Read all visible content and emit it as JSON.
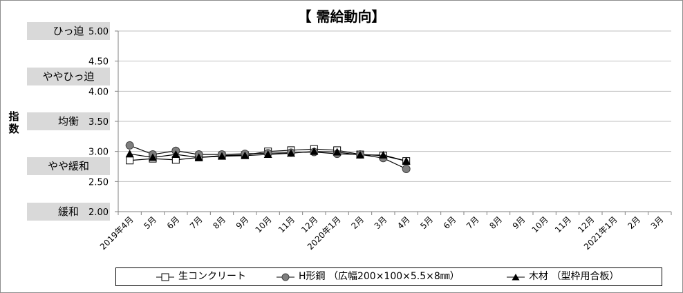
{
  "chart_data": {
    "type": "line",
    "title": "【 需給動向】",
    "ylabel": "指数",
    "ylim": [
      2.0,
      5.0
    ],
    "yticks": [
      "2.00",
      "2.50",
      "3.00",
      "3.50",
      "4.00",
      "4.50",
      "5.00"
    ],
    "category_labels": [
      {
        "label": "ひっ迫",
        "value": 5.0
      },
      {
        "label": "ややひっ迫",
        "value": 4.25
      },
      {
        "label": "均衡",
        "value": 3.5
      },
      {
        "label": "やや緩和",
        "value": 2.75
      },
      {
        "label": "緩和",
        "value": 2.0
      }
    ],
    "categories": [
      "2019年4月",
      "5月",
      "6月",
      "7月",
      "8月",
      "9月",
      "10月",
      "11月",
      "12月",
      "2020年1月",
      "2月",
      "3月",
      "4月",
      "5月",
      "6月",
      "7月",
      "8月",
      "9月",
      "10月",
      "11月",
      "12月",
      "2021年1月",
      "2月",
      "3月"
    ],
    "series": [
      {
        "name": "生コンクリート",
        "marker": "square",
        "color": "#000000",
        "values": [
          2.85,
          2.88,
          2.86,
          2.9,
          2.93,
          2.94,
          3.0,
          3.02,
          3.04,
          3.02,
          2.95,
          2.93,
          2.84,
          null,
          null,
          null,
          null,
          null,
          null,
          null,
          null,
          null,
          null,
          null
        ]
      },
      {
        "name": "H形鋼 （広幅200×100×5.5×8㎜）",
        "marker": "circle",
        "color": "#7f7f7f",
        "values": [
          3.1,
          2.95,
          3.01,
          2.95,
          2.95,
          2.96,
          2.97,
          2.98,
          2.99,
          2.96,
          2.95,
          2.89,
          2.71,
          null,
          null,
          null,
          null,
          null,
          null,
          null,
          null,
          null,
          null,
          null
        ]
      },
      {
        "name": "木材 （型枠用合板）",
        "marker": "triangle",
        "color": "#000000",
        "values": [
          2.96,
          2.9,
          2.95,
          2.9,
          2.92,
          2.93,
          2.95,
          2.97,
          3.0,
          2.99,
          2.94,
          2.94,
          2.84,
          null,
          null,
          null,
          null,
          null,
          null,
          null,
          null,
          null,
          null,
          null
        ]
      }
    ],
    "grid": true,
    "legend_position": "bottom"
  }
}
